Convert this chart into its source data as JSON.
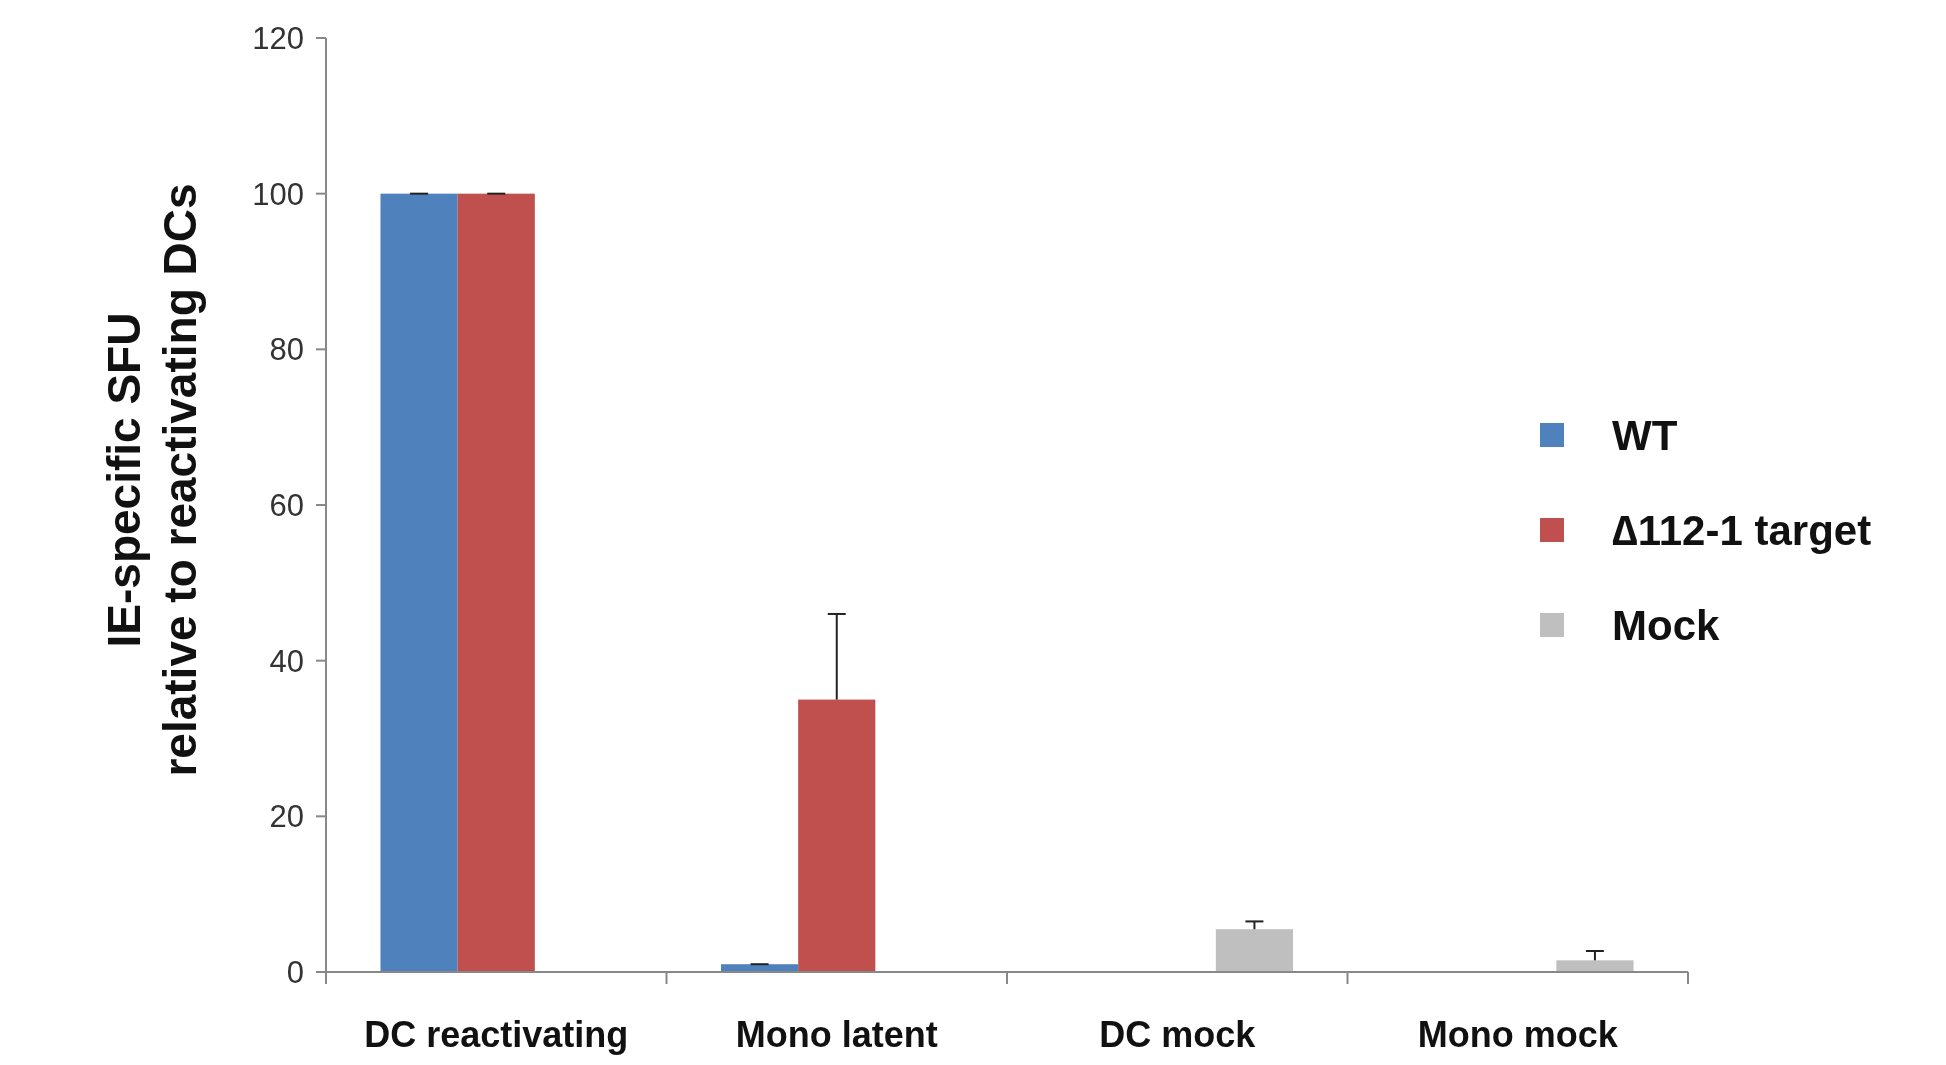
{
  "chart_data": {
    "type": "bar",
    "ylabel": "IE-specific SFU\nrelative to reactivating DCs",
    "categories": [
      "DC reactivating",
      "Mono latent",
      "DC mock",
      "Mono mock"
    ],
    "series": [
      {
        "name": "WT",
        "color": "#4f81bd",
        "values": [
          100,
          1,
          null,
          null
        ],
        "errors": [
          0,
          0,
          null,
          null
        ]
      },
      {
        "name": "∆112-1 target",
        "color": "#c0504d",
        "values": [
          100,
          35,
          null,
          null
        ],
        "errors": [
          0,
          11,
          null,
          null
        ]
      },
      {
        "name": "Mock",
        "color": "#bfbfbf",
        "values": [
          null,
          null,
          5.5,
          1.5
        ],
        "errors": [
          null,
          null,
          1,
          1.2
        ]
      }
    ],
    "ylim": [
      0,
      120
    ],
    "yticks": [
      0,
      20,
      40,
      60,
      80,
      100,
      120
    ],
    "grid": false,
    "legend": "right"
  }
}
